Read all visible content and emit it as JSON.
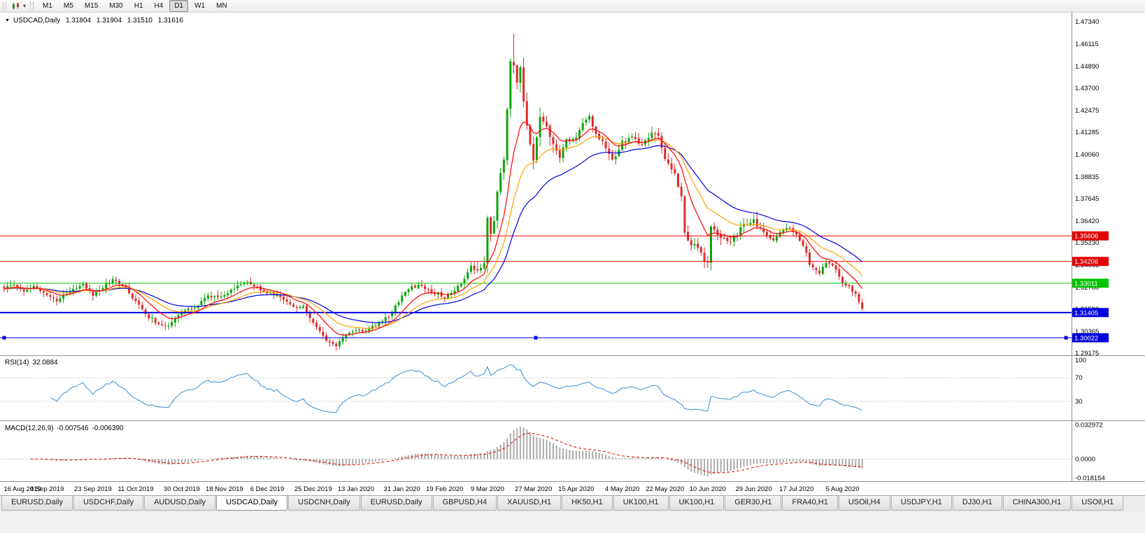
{
  "toolbar": {
    "caret_icon_glyph": "▾",
    "timeframes": [
      {
        "label": "M1"
      },
      {
        "label": "M5"
      },
      {
        "label": "M15"
      },
      {
        "label": "M30"
      },
      {
        "label": "H1"
      },
      {
        "label": "H4"
      },
      {
        "label": "D1"
      },
      {
        "label": "W1"
      },
      {
        "label": "MN"
      }
    ],
    "active_timeframe": "D1"
  },
  "chart": {
    "title": {
      "marker": "▼",
      "symbol": "USDCAD,Daily",
      "open": "1.31804",
      "high": "1.31904",
      "low": "1.31510",
      "close": "1.31616"
    },
    "price_axis": {
      "ticks": [
        "1.47340",
        "1.46115",
        "1.44890",
        "1.43700",
        "1.42475",
        "1.41285",
        "1.40060",
        "1.38835",
        "1.37645",
        "1.36420",
        "1.35230",
        "1.34005",
        "1.32780",
        "1.31590",
        "1.30365",
        "1.29175"
      ]
    },
    "hlines": [
      {
        "label": "1.35606",
        "price": 1.35606,
        "color": "#E00000",
        "width": 1,
        "selected": false
      },
      {
        "label": "1.34206",
        "price": 1.34206,
        "color": "#E00000",
        "width": 1,
        "selected": false
      },
      {
        "label": "1.33011",
        "price": 1.33011,
        "color": "#00C400",
        "width": 1,
        "selected": false
      },
      {
        "label": "1.31405",
        "price": 1.31405,
        "color": "#0000E0",
        "width": 2,
        "selected": false
      },
      {
        "label": "1.30022",
        "price": 1.30022,
        "color": "#0000E0",
        "width": 1,
        "selected": true
      }
    ],
    "date_axis": {
      "ticks": [
        {
          "label": "16 Aug 2019",
          "candle": 0
        },
        {
          "label": "4 Sep 2019",
          "candle": 13
        },
        {
          "label": "23 Sep 2019",
          "candle": 27
        },
        {
          "label": "11 Oct 2019",
          "candle": 40
        },
        {
          "label": "30 Oct 2019",
          "candle": 54
        },
        {
          "label": "18 Nov 2019",
          "candle": 67
        },
        {
          "label": "6 Dec 2019",
          "candle": 80
        },
        {
          "label": "25 Dec 2019",
          "candle": 94
        },
        {
          "label": "13 Jan 2020",
          "candle": 107
        },
        {
          "label": "31 Jan 2020",
          "candle": 121
        },
        {
          "label": "19 Feb 2020",
          "candle": 134
        },
        {
          "label": "9 Mar 2020",
          "candle": 147
        },
        {
          "label": "27 Mar 2020",
          "candle": 161
        },
        {
          "label": "15 Apr 2020",
          "candle": 174
        },
        {
          "label": "4 May 2020",
          "candle": 188
        },
        {
          "label": "22 May 2020",
          "candle": 201
        },
        {
          "label": "10 Jun 2020",
          "candle": 214
        },
        {
          "label": "29 Jun 2020",
          "candle": 228
        },
        {
          "label": "17 Jul 2020",
          "candle": 241
        },
        {
          "label": "5 Aug 2020",
          "candle": 255
        }
      ]
    }
  },
  "indicators": {
    "rsi": {
      "name": "RSI(14)",
      "value": "32.0884",
      "period": 14,
      "levels": [
        "100",
        "70",
        "30"
      ],
      "color": "#4D96D6"
    },
    "macd": {
      "name": "MACD(12,26,9)",
      "value_main": "-0.007546",
      "value_signal": "-0.006390",
      "fast": 12,
      "slow": 26,
      "signal": 9,
      "axis_ticks": [
        "0.032972",
        "0.0000",
        "-0.018154"
      ],
      "hist_color": "#ABABAB",
      "signal_color": "#E00000"
    }
  },
  "moving_averages": [
    {
      "period": 10,
      "method": "ema",
      "color": "#FF0000"
    },
    {
      "period": 20,
      "method": "ema",
      "color": "#FFA000"
    },
    {
      "period": 34,
      "method": "ema",
      "color": "#0000E0"
    }
  ],
  "colors": {
    "candle_up": "#0CA40C",
    "candle_down": "#DF2B2B",
    "separator": "#909090",
    "axis_text": "#000000"
  },
  "chart_data": {
    "type": "candlestick",
    "symbol": "USDCAD",
    "timeframe": "Daily",
    "visible_range": {
      "price_min": 1.2906,
      "price_max": 1.4784,
      "num_candles": 262
    },
    "current_bar": {
      "open": 1.31804,
      "high": 1.31904,
      "low": 1.3151,
      "close": 1.31616
    },
    "high_of_range": 1.4669,
    "key_levels": [
      1.35606,
      1.34206,
      1.33011,
      1.31405,
      1.30022
    ],
    "indicators_current": {
      "rsi_14": 32.0884,
      "macd": -0.007546,
      "macd_signal": -0.00639
    },
    "close_path_anchors": [
      [
        0,
        1.327
      ],
      [
        3,
        1.33
      ],
      [
        6,
        1.3255
      ],
      [
        9,
        1.3285
      ],
      [
        13,
        1.323
      ],
      [
        16,
        1.3205
      ],
      [
        20,
        1.326
      ],
      [
        24,
        1.329
      ],
      [
        27,
        1.3235
      ],
      [
        30,
        1.328
      ],
      [
        33,
        1.332
      ],
      [
        36,
        1.329
      ],
      [
        40,
        1.32
      ],
      [
        43,
        1.313
      ],
      [
        47,
        1.308
      ],
      [
        50,
        1.3065
      ],
      [
        54,
        1.314
      ],
      [
        58,
        1.317
      ],
      [
        62,
        1.323
      ],
      [
        67,
        1.323
      ],
      [
        71,
        1.329
      ],
      [
        74,
        1.3305
      ],
      [
        77,
        1.328
      ],
      [
        80,
        1.325
      ],
      [
        84,
        1.323
      ],
      [
        88,
        1.3165
      ],
      [
        91,
        1.317
      ],
      [
        94,
        1.309
      ],
      [
        97,
        1.301
      ],
      [
        99,
        1.2975
      ],
      [
        101,
        1.296
      ],
      [
        104,
        1.302
      ],
      [
        107,
        1.305
      ],
      [
        110,
        1.304
      ],
      [
        113,
        1.307
      ],
      [
        117,
        1.312
      ],
      [
        121,
        1.323
      ],
      [
        124,
        1.328
      ],
      [
        127,
        1.329
      ],
      [
        130,
        1.3255
      ],
      [
        134,
        1.3225
      ],
      [
        137,
        1.326
      ],
      [
        140,
        1.332
      ],
      [
        142,
        1.339
      ],
      [
        144,
        1.336
      ],
      [
        146,
        1.342
      ],
      [
        147,
        1.366
      ],
      [
        148,
        1.358
      ],
      [
        149,
        1.364
      ],
      [
        150,
        1.381
      ],
      [
        151,
        1.392
      ],
      [
        152,
        1.398
      ],
      [
        153,
        1.424
      ],
      [
        154,
        1.45
      ],
      [
        155,
        1.451
      ],
      [
        156,
        1.442
      ],
      [
        157,
        1.448
      ],
      [
        158,
        1.431
      ],
      [
        159,
        1.418
      ],
      [
        160,
        1.406
      ],
      [
        161,
        1.399
      ],
      [
        162,
        1.409
      ],
      [
        163,
        1.421
      ],
      [
        165,
        1.416
      ],
      [
        167,
        1.405
      ],
      [
        169,
        1.399
      ],
      [
        171,
        1.408
      ],
      [
        174,
        1.409
      ],
      [
        176,
        1.417
      ],
      [
        178,
        1.422
      ],
      [
        180,
        1.412
      ],
      [
        182,
        1.408
      ],
      [
        185,
        1.397
      ],
      [
        188,
        1.407
      ],
      [
        191,
        1.411
      ],
      [
        194,
        1.405
      ],
      [
        197,
        1.412
      ],
      [
        199,
        1.41
      ],
      [
        201,
        1.3985
      ],
      [
        204,
        1.39
      ],
      [
        206,
        1.378
      ],
      [
        207,
        1.357
      ],
      [
        209,
        1.352
      ],
      [
        211,
        1.349
      ],
      [
        213,
        1.343
      ],
      [
        214,
        1.3415
      ],
      [
        215,
        1.361
      ],
      [
        217,
        1.357
      ],
      [
        219,
        1.354
      ],
      [
        221,
        1.353
      ],
      [
        224,
        1.36
      ],
      [
        226,
        1.363
      ],
      [
        228,
        1.365
      ],
      [
        230,
        1.359
      ],
      [
        232,
        1.357
      ],
      [
        234,
        1.353
      ],
      [
        236,
        1.359
      ],
      [
        238,
        1.361
      ],
      [
        240,
        1.358
      ],
      [
        241,
        1.357
      ],
      [
        243,
        1.351
      ],
      [
        245,
        1.341
      ],
      [
        247,
        1.338
      ],
      [
        248,
        1.336
      ],
      [
        250,
        1.342
      ],
      [
        252,
        1.3405
      ],
      [
        254,
        1.334
      ],
      [
        255,
        1.331
      ],
      [
        257,
        1.328
      ],
      [
        259,
        1.324
      ],
      [
        260,
        1.32
      ],
      [
        261,
        1.3162
      ]
    ]
  },
  "tabs": {
    "active_index": 3,
    "items": [
      "EURUSD,Daily",
      "USDCHF,Daily",
      "AUDUSD,Daily",
      "USDCAD,Daily",
      "USDCNH,Daily",
      "EURUSD,Daily",
      "GBPUSD,H4",
      "XAUUSD,H1",
      "HK50,H1",
      "UK100,H1",
      "UK100,H1",
      "GER30,H1",
      "FRA40,H1",
      "USOil,H4",
      "USDJPY,H1",
      "DJ30,H1",
      "CHINA300,H1",
      "USOil,H1"
    ]
  }
}
